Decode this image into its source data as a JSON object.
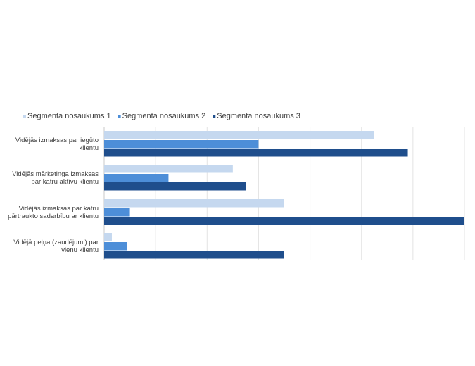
{
  "chart_data": {
    "type": "bar",
    "orientation": "horizontal",
    "categories": [
      [
        "Vidējās izmaksas par iegūto",
        "klientu"
      ],
      [
        "Vidējās mārketinga izmaksas",
        "par katru aktīvu klientu"
      ],
      [
        "Vidējās izmaksas par katru",
        "pārtraukto sadarbību ar klientu"
      ],
      [
        "Vidējā peļņa (zaudējumi) par",
        "vienu klientu"
      ]
    ],
    "series": [
      {
        "name": "Segmenta nosaukums 1",
        "color": "#c5d8ef",
        "values": [
          105,
          50,
          70,
          3
        ]
      },
      {
        "name": "Segmenta nosaukums 2",
        "color": "#4d8ed8",
        "values": [
          60,
          25,
          10,
          9
        ]
      },
      {
        "name": "Segmenta nosaukums 3",
        "color": "#1f4e8c",
        "values": [
          118,
          55,
          140,
          70
        ]
      }
    ],
    "xlim": [
      0,
      140
    ],
    "grid": true,
    "legend": "top-left",
    "title": "",
    "xlabel": "",
    "ylabel": ""
  }
}
